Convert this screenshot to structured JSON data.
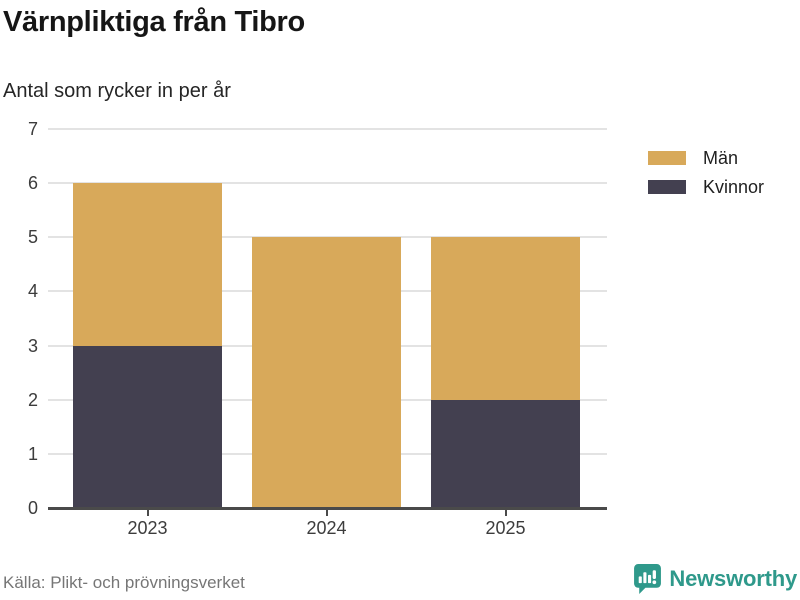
{
  "title": "Värnpliktiga från Tibro",
  "subtitle": "Antal som rycker in per år",
  "source": "Källa: Plikt- och prövningsverket",
  "branding": {
    "name": "Newsworthy",
    "icon": "bar-chart-speech-bubble-icon"
  },
  "legend": [
    {
      "label": "Män",
      "color": "#d8a95a"
    },
    {
      "label": "Kvinnor",
      "color": "#434050"
    }
  ],
  "colors": {
    "men": "#d8a95a",
    "women": "#434050",
    "gridline": "#e3e3e3",
    "axis": "#4a4a4a",
    "brand_teal": "#2f998b",
    "source_text": "#767676"
  },
  "chart_data": {
    "type": "bar",
    "stacked": true,
    "categories": [
      "2023",
      "2024",
      "2025"
    ],
    "series": [
      {
        "name": "Kvinnor",
        "color": "#434050",
        "values": [
          3,
          0,
          2
        ]
      },
      {
        "name": "Män",
        "color": "#d8a95a",
        "values": [
          3,
          5,
          3
        ]
      }
    ],
    "totals": [
      6,
      5,
      5
    ],
    "title": "Värnpliktiga från Tibro",
    "subtitle": "Antal som rycker in per år",
    "xlabel": "",
    "ylabel": "",
    "ylim": [
      0,
      7
    ],
    "yticks": [
      0,
      1,
      2,
      3,
      4,
      5,
      6,
      7
    ],
    "grid": true,
    "legend_position": "top-right"
  }
}
